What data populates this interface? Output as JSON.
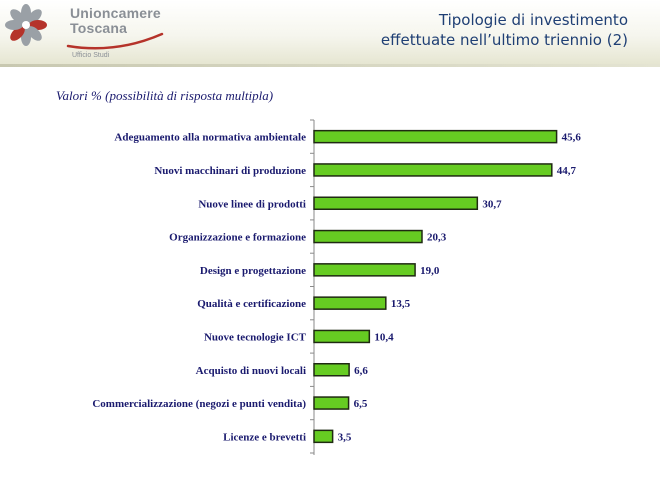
{
  "header": {
    "logo_line1": "Unioncamere",
    "logo_line2": "Toscana",
    "logo_sub": "Ufficio Studi",
    "title_line1": "Tipologie di investimento",
    "title_line2": "effettuate nell’ultimo triennio (2)"
  },
  "colors": {
    "bar_fill": "#66cc22",
    "bar_stroke": "#1f2a12",
    "text": "#1a1a6e",
    "title": "#1f3f74",
    "logo_red": "#b5332a"
  },
  "chart_data": {
    "type": "bar",
    "orientation": "horizontal",
    "subtitle": "Valori % (possibilità di risposta multipla)",
    "categories": [
      "Adeguamento alla normativa ambientale",
      "Nuovi macchinari di produzione",
      "Nuove linee di prodotti",
      "Organizzazione e formazione",
      "Design e progettazione",
      "Qualità e certificazione",
      "Nuove tecnologie ICT",
      "Acquisto di nuovi locali",
      "Commercializzazione (negozi e punti vendita)",
      "Licenze e brevetti"
    ],
    "values": [
      45.6,
      44.7,
      30.7,
      20.3,
      19.0,
      13.5,
      10.4,
      6.6,
      6.5,
      3.5
    ],
    "value_labels": [
      "45,6",
      "44,7",
      "30,7",
      "20,3",
      "19,0",
      "13,5",
      "10,4",
      "6,6",
      "6,5",
      "3,5"
    ],
    "xlim": [
      0,
      50
    ],
    "grid": false,
    "legend": "none"
  }
}
